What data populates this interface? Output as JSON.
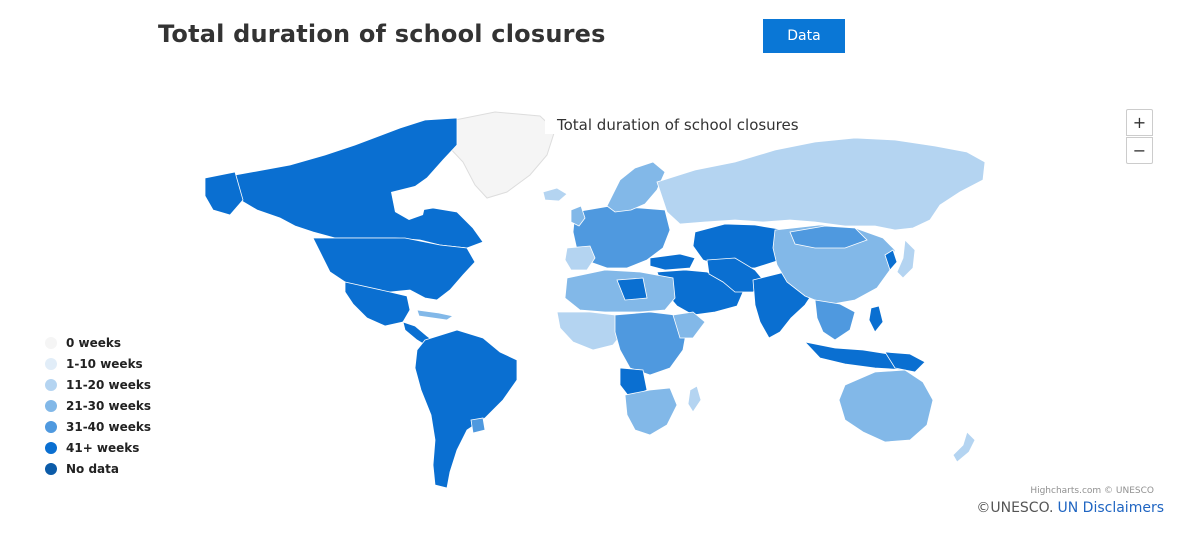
{
  "header": {
    "title": "Total duration of school closures",
    "data_button_label": "Data"
  },
  "map": {
    "title": "Total duration of school closures",
    "zoom_in": "+",
    "zoom_out": "−",
    "credits": "Highcharts.com © UNESCO"
  },
  "legend": {
    "items": [
      {
        "label": "0 weeks",
        "color": "#f5f5f5"
      },
      {
        "label": "1-10 weeks",
        "color": "#e1edf8"
      },
      {
        "label": "11-20 weeks",
        "color": "#b4d4f1"
      },
      {
        "label": "21-30 weeks",
        "color": "#82b8e8"
      },
      {
        "label": "31-40 weeks",
        "color": "#4f99df"
      },
      {
        "label": "41+ weeks",
        "color": "#0a6fd1"
      },
      {
        "label": "No data",
        "color": "#0b5ba8"
      }
    ]
  },
  "footer": {
    "copyright": "©UNESCO.",
    "link_label": "UN Disclaimers"
  },
  "colors": {
    "accent": "#0a77d6",
    "w0": "#f5f5f5",
    "w1_10": "#e1edf8",
    "w11_20": "#b4d4f1",
    "w21_30": "#82b8e8",
    "w31_40": "#4f99df",
    "w41_plus": "#0a6fd1"
  }
}
